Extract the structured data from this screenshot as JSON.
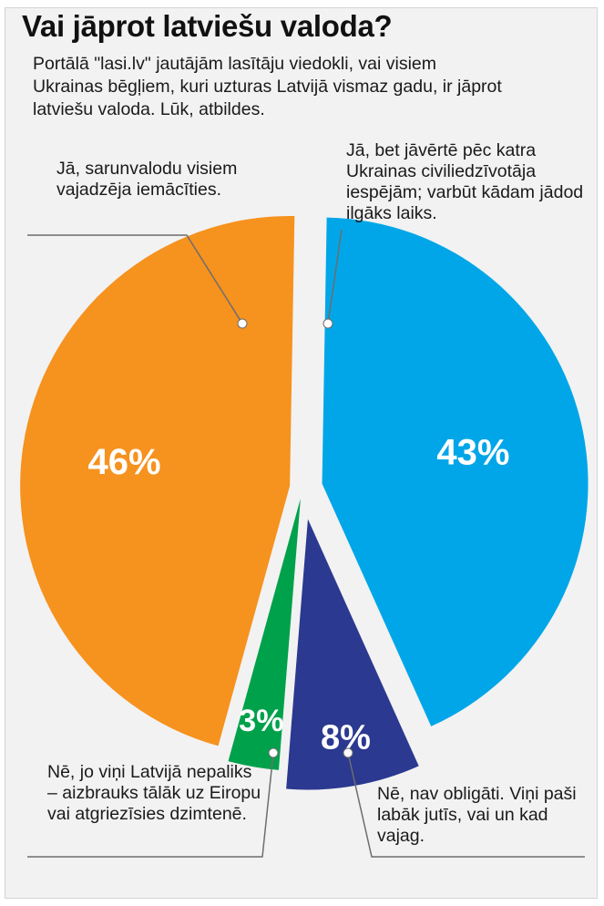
{
  "title": "Vai jāprot latviešu valoda?",
  "subtitle": "Portālā \"lasi.lv\" jautājām lasītāju viedokli, vai visiem Ukrainas bēgļiem, kuri uzturas Latvijā vismaz gadu, ir jāprot latviešu valoda. Lūk, atbildes.",
  "chart_data": {
    "type": "pie",
    "title": "Vai jāprot latviešu valoda?",
    "slices": [
      {
        "label": "Jā, bet jāvērtē pēc katra Ukrainas civiliedzīvotāja iespējām; varbūt kādam jādod ilgāks laiks.",
        "value": 43,
        "value_label": "43%",
        "color": "#00a6e8"
      },
      {
        "label": "Nē, nav obligāti. Viņi paši labāk jutīs, vai un kad vajag.",
        "value": 8,
        "value_label": "8%",
        "color": "#2b3990"
      },
      {
        "label": "Nē, jo viņi Latvijā nepaliks – aizbrauks tālāk uz Eiropu vai atgriezīsies dzimtenē.",
        "value": 3,
        "value_label": "3%",
        "color": "#00a14b"
      },
      {
        "label": "Jā, sarunvalodu visiem vajadzēja iemācīties.",
        "value": 46,
        "value_label": "46%",
        "color": "#f6921e"
      }
    ]
  },
  "colors": {
    "background": "#f2f2f2",
    "leader_line": "#6d6d6d",
    "dot": "#ffffff"
  }
}
